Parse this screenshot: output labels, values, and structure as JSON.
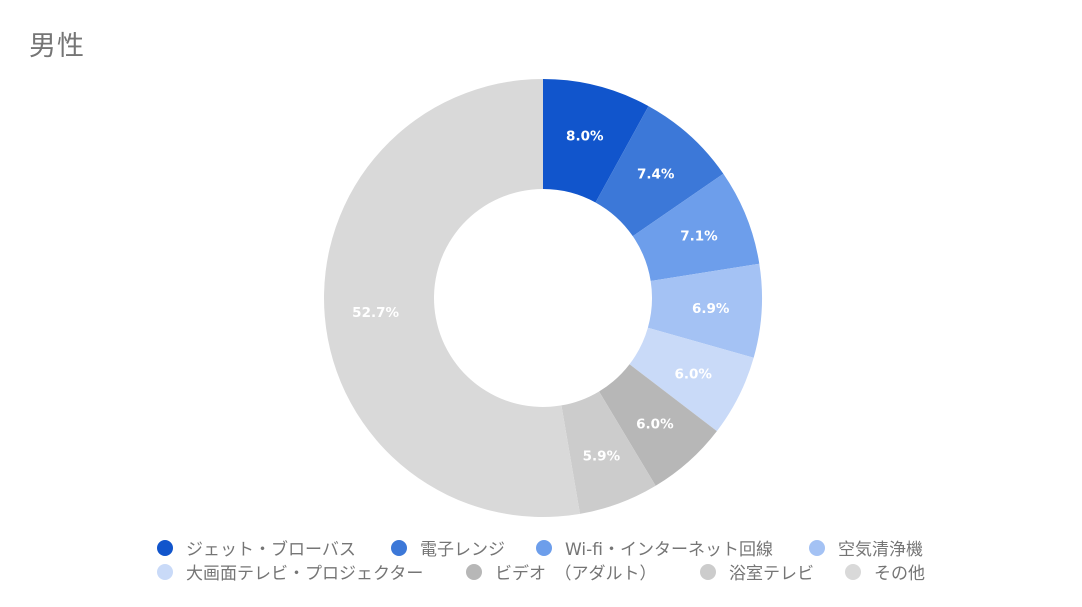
{
  "title": "男性",
  "chart_data": {
    "type": "pie",
    "subtype": "donut",
    "title": "男性",
    "categories": [
      "ジェット・ブローバス",
      "電子レンジ",
      "Wi-fi・インターネット回線",
      "空気清浄機",
      "大画面テレビ・プロジェクター",
      "ビデオ　（アダルト）",
      "浴室テレビ",
      "その他"
    ],
    "values": [
      8.0,
      7.4,
      7.1,
      6.9,
      6.0,
      6.0,
      5.9,
      52.7
    ],
    "labels": [
      "8.0%",
      "7.4%",
      "7.1%",
      "6.9%",
      "6.0%",
      "6.0%",
      "5.9%",
      "52.7%"
    ],
    "colors": [
      "#1155cc",
      "#3c78d8",
      "#6d9eeb",
      "#a4c2f4",
      "#c9daf8",
      "#b7b7b7",
      "#cccccc",
      "#d9d9d9"
    ],
    "legend_position": "bottom",
    "unit": "%"
  },
  "legend": {
    "items": [
      {
        "label": "ジェット・ブローバス",
        "color": "#1155cc"
      },
      {
        "label": "電子レンジ",
        "color": "#3c78d8"
      },
      {
        "label": "Wi-fi・インターネット回線",
        "color": "#6d9eeb"
      },
      {
        "label": "空気清浄機",
        "color": "#a4c2f4"
      },
      {
        "label": "大画面テレビ・プロジェクター",
        "color": "#c9daf8"
      },
      {
        "label": "ビデオ　（アダルト）",
        "color": "#b7b7b7"
      },
      {
        "label": "浴室テレビ",
        "color": "#cccccc"
      },
      {
        "label": "その他",
        "color": "#d9d9d9"
      }
    ]
  }
}
